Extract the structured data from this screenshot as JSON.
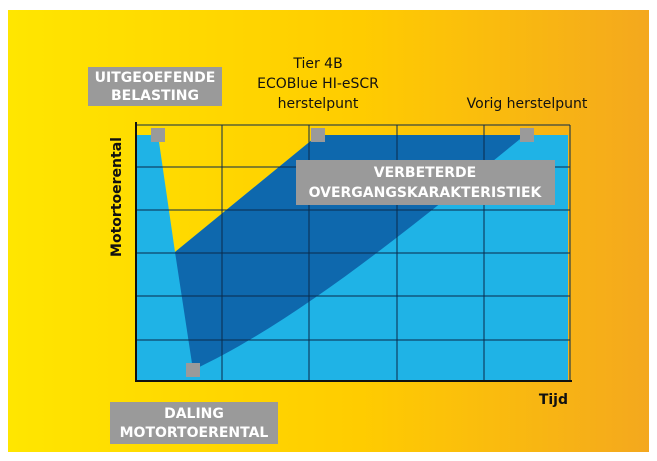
{
  "labels": {
    "applied_load": [
      "UITGEOEFENDE",
      "BELASTING"
    ],
    "tier_recovery": [
      "Tier 4B",
      "ECOBlue HI-eSCR",
      "herstelpunt"
    ],
    "previous_recovery": "Vorig herstelpunt",
    "improved": [
      "VERBETERDE",
      "OVERGANGSKARAKTERISTIEK"
    ],
    "drop": [
      "DALING",
      "MOTORTOERENTAL"
    ],
    "y_axis": "Motortoerental",
    "x_axis": "Tijd"
  }
}
